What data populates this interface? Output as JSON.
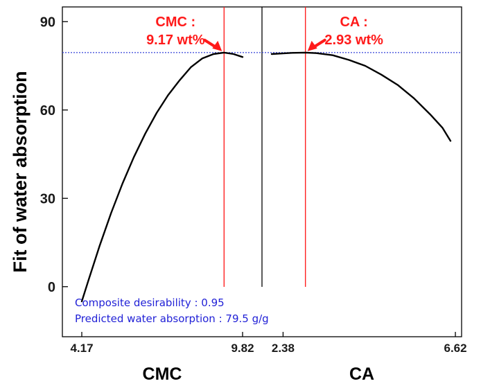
{
  "chart_data": {
    "type": "line",
    "ylabel": "Fit of water absorption",
    "ylim": [
      -17,
      95
    ],
    "yticks": [
      0,
      30,
      60,
      90
    ],
    "panels": [
      {
        "name": "CMC",
        "xlabel": "CMC",
        "xlim": [
          4.17,
          10.5
        ],
        "xtick_labels": [
          "4.17",
          "9.82"
        ],
        "xtick_values": [
          4.17,
          9.82
        ],
        "optimum_x": 9.17,
        "optimum_y": 79.5,
        "callout_line1": "CMC :",
        "callout_line2": "9.17 wt%",
        "series": {
          "x": [
            4.17,
            4.4,
            4.8,
            5.2,
            5.6,
            6.0,
            6.4,
            6.8,
            7.2,
            7.6,
            8.0,
            8.4,
            8.8,
            9.17,
            9.5,
            9.82
          ],
          "y": [
            -5,
            2,
            14,
            25,
            35,
            44,
            52,
            59,
            65,
            70,
            74.5,
            77.5,
            79,
            79.5,
            79,
            78
          ]
        }
      },
      {
        "name": "CA",
        "xlabel": "CA",
        "xlim": [
          1.9,
          6.62
        ],
        "xtick_labels": [
          "2.38",
          "6.62"
        ],
        "xtick_values": [
          2.38,
          6.62
        ],
        "optimum_x": 2.93,
        "optimum_y": 79.5,
        "callout_line1": "CA :",
        "callout_line2": "2.93 wt%",
        "series": {
          "x": [
            2.1,
            2.38,
            2.6,
            2.93,
            3.2,
            3.6,
            4.0,
            4.4,
            4.8,
            5.2,
            5.6,
            6.0,
            6.3,
            6.5
          ],
          "y": [
            79,
            79.2,
            79.4,
            79.5,
            79.3,
            78.6,
            77,
            75,
            72,
            68.5,
            64,
            58.5,
            54,
            49.5
          ]
        }
      }
    ],
    "reference_line_y": 79.5,
    "annotations": [
      "Composite desirability : 0.95",
      "Predicted water absorption : 79.5  g/g"
    ]
  }
}
